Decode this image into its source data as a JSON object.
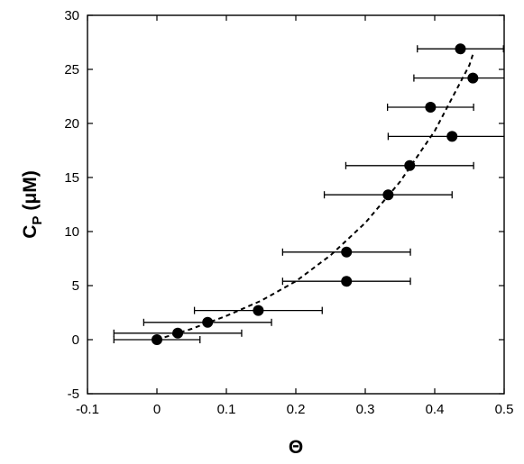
{
  "chart_data": {
    "type": "scatter",
    "title": "",
    "xlabel": "Θ",
    "ylabel": "C",
    "ylabel_sub": "P",
    "ylabel_unit": "(μM)",
    "xlim": [
      -0.1,
      0.5
    ],
    "ylim": [
      -5,
      30
    ],
    "xticks": [
      -0.1,
      0,
      0.1,
      0.2,
      0.3,
      0.4,
      0.5
    ],
    "xtick_labels": [
      "-0.1",
      "0",
      "0.1",
      "0.2",
      "0.3",
      "0.4",
      "0.5"
    ],
    "yticks": [
      -5,
      0,
      5,
      10,
      15,
      20,
      25,
      30
    ],
    "ytick_labels": [
      "-5",
      "0",
      "5",
      "10",
      "15",
      "20",
      "25",
      "30"
    ],
    "grid": false,
    "series": [
      {
        "points": [
          {
            "x": 0.0,
            "y": 0.0,
            "xerr": 0.062
          },
          {
            "x": 0.03,
            "y": 0.6,
            "xerr": 0.092
          },
          {
            "x": 0.073,
            "y": 1.6,
            "xerr": 0.092
          },
          {
            "x": 0.146,
            "y": 2.7,
            "xerr": 0.092
          },
          {
            "x": 0.273,
            "y": 5.4,
            "xerr": 0.092
          },
          {
            "x": 0.273,
            "y": 8.1,
            "xerr": 0.092
          },
          {
            "x": 0.333,
            "y": 13.4,
            "xerr": 0.092
          },
          {
            "x": 0.364,
            "y": 16.1,
            "xerr": 0.092
          },
          {
            "x": 0.425,
            "y": 18.8,
            "xerr": 0.092
          },
          {
            "x": 0.394,
            "y": 21.5,
            "xerr": 0.062
          },
          {
            "x": 0.455,
            "y": 24.2,
            "xerr": 0.085
          },
          {
            "x": 0.437,
            "y": 26.9,
            "xerr": 0.062
          }
        ],
        "color": "#000000"
      }
    ],
    "fit_curve": {
      "style": "dashed",
      "x": [
        0.0,
        0.05,
        0.1,
        0.15,
        0.2,
        0.25,
        0.3,
        0.35,
        0.4,
        0.45,
        0.455
      ],
      "y": [
        0.0,
        1.0,
        2.2,
        3.6,
        5.4,
        7.8,
        10.8,
        14.6,
        19.3,
        25.4,
        26.4
      ]
    }
  }
}
